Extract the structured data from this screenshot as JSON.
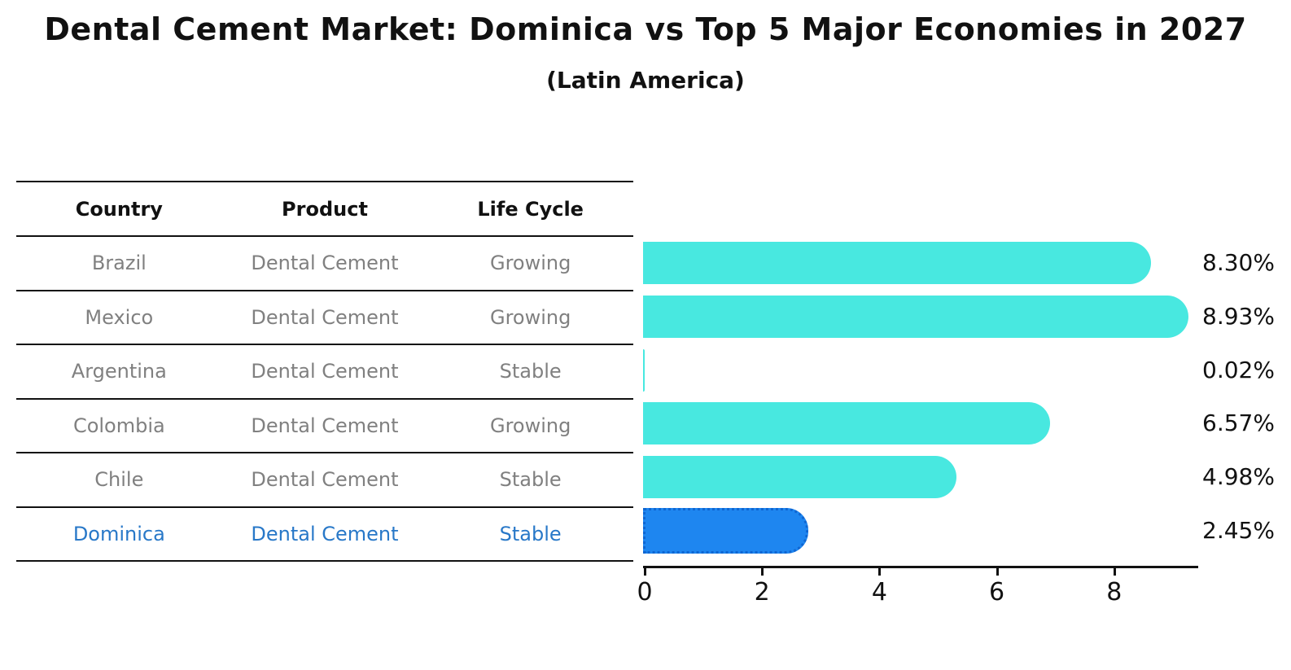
{
  "chart_data": {
    "type": "bar",
    "orientation": "horizontal",
    "title": "Dental Cement Market: Dominica vs Top 5 Major Economies in 2027",
    "subtitle": "(Latin America)",
    "categories": [
      "Brazil",
      "Mexico",
      "Argentina",
      "Colombia",
      "Chile",
      "Dominica"
    ],
    "values": [
      8.3,
      8.93,
      0.02,
      6.57,
      4.98,
      2.45
    ],
    "value_labels": [
      "8.30%",
      "8.93%",
      "0.02%",
      "6.57%",
      "4.98%",
      "2.45%"
    ],
    "x_ticks": [
      "0",
      "2",
      "4",
      "6",
      "8"
    ],
    "x_tick_values": [
      0,
      2,
      4,
      6,
      8
    ],
    "xlim": [
      0,
      9.45
    ],
    "grid": false,
    "legend": "none",
    "bar_color": "#48e8e0",
    "highlight_bar_color": "#1e86f0",
    "highlight_border_color": "#0f66d2",
    "highlight_index": 5
  },
  "table": {
    "headers": [
      "Country",
      "Product",
      "Life Cycle"
    ],
    "rows": [
      {
        "country": "Brazil",
        "product": "Dental Cement",
        "life_cycle": "Growing",
        "highlight": false
      },
      {
        "country": "Mexico",
        "product": "Dental Cement",
        "life_cycle": "Growing",
        "highlight": false
      },
      {
        "country": "Argentina",
        "product": "Dental Cement",
        "life_cycle": "Stable",
        "highlight": false
      },
      {
        "country": "Colombia",
        "product": "Dental Cement",
        "life_cycle": "Growing",
        "highlight": false
      },
      {
        "country": "Chile",
        "product": "Dental Cement",
        "life_cycle": "Stable",
        "highlight": false
      },
      {
        "country": "Dominica",
        "product": "Dental Cement",
        "life_cycle": "Stable",
        "highlight": true
      }
    ]
  },
  "colors": {
    "text_primary": "#111111",
    "text_muted": "#808080",
    "highlight_text": "#2878c8",
    "background": "#ffffff"
  }
}
